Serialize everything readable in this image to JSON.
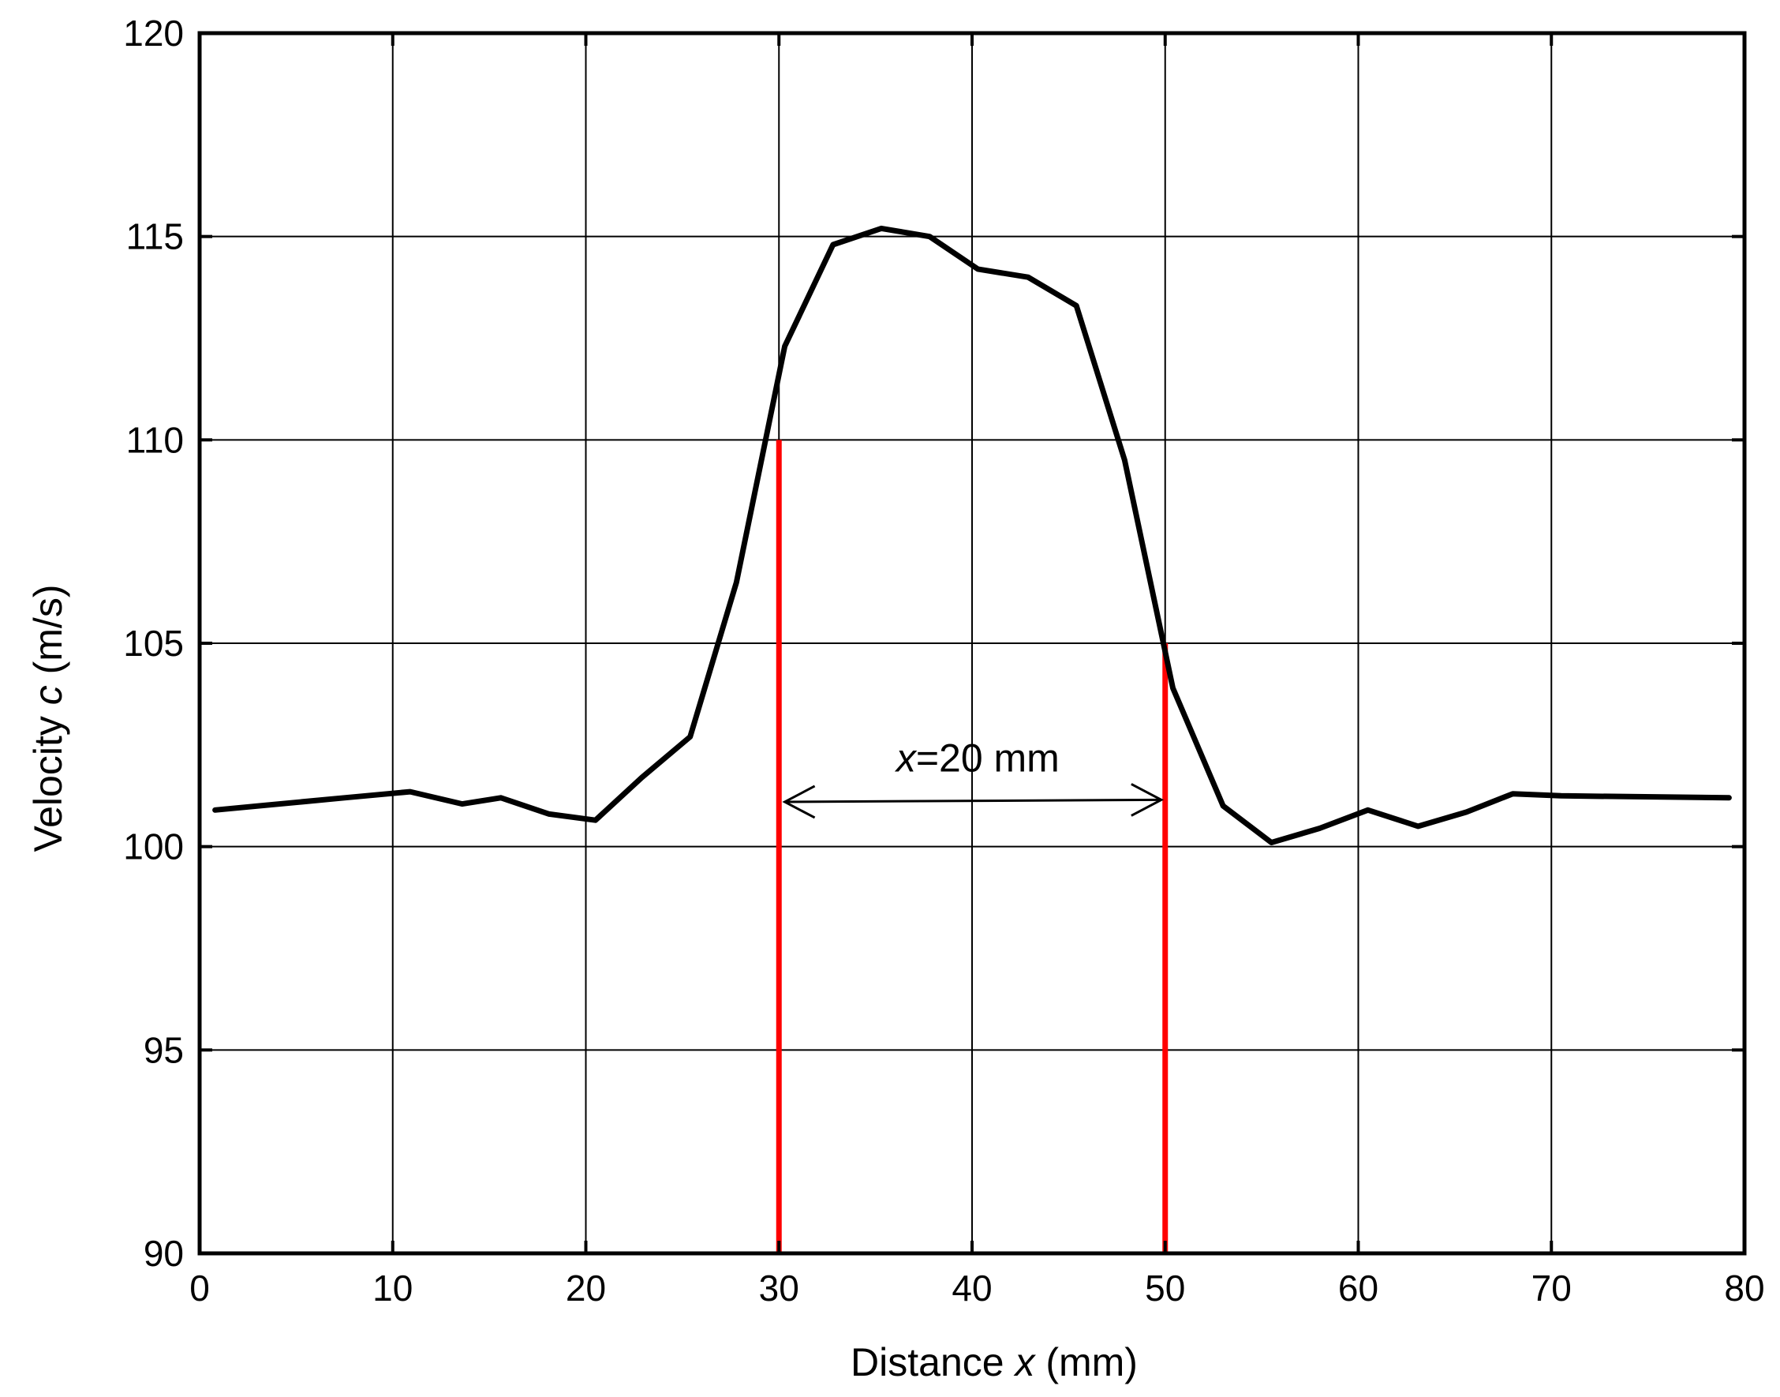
{
  "chart_data": {
    "type": "line",
    "title": "",
    "xlabel_parts": [
      {
        "text": "Distance ",
        "italic": false
      },
      {
        "text": "x",
        "italic": true
      },
      {
        "text": " (mm)",
        "italic": false
      }
    ],
    "ylabel_parts": [
      {
        "text": "Velocity ",
        "italic": false
      },
      {
        "text": "c",
        "italic": true
      },
      {
        "text": " (m/s)",
        "italic": false
      }
    ],
    "xlim": [
      0,
      80
    ],
    "ylim": [
      90,
      120
    ],
    "xticks": [
      0,
      10,
      20,
      30,
      40,
      50,
      60,
      70,
      80
    ],
    "yticks": [
      90,
      95,
      100,
      105,
      110,
      115,
      120
    ],
    "grid": true,
    "series": [
      {
        "color": "#000000",
        "x": [
          0.8,
          7.5,
          10.9,
          13.6,
          15.6,
          18.1,
          20.5,
          22.9,
          25.4,
          27.8,
          30.3,
          32.8,
          35.3,
          37.8,
          40.3,
          42.9,
          45.4,
          47.9,
          50.4,
          53.0,
          55.5,
          58.0,
          60.5,
          63.1,
          65.6,
          68.0,
          70.5,
          79.2
        ],
        "y": [
          100.9,
          101.2,
          101.35,
          101.05,
          101.2,
          100.8,
          100.65,
          101.7,
          102.7,
          106.5,
          112.3,
          114.8,
          115.2,
          115.0,
          114.2,
          114.0,
          113.3,
          109.5,
          103.9,
          101.0,
          100.1,
          100.45,
          100.9,
          100.5,
          100.85,
          101.3,
          101.25,
          101.2
        ]
      }
    ],
    "markers": [
      {
        "x": 30,
        "y_top": 110,
        "color": "#ff0000"
      },
      {
        "x": 50,
        "y_top": 105,
        "color": "#ff0000"
      }
    ],
    "annotation": {
      "text_italic": "x",
      "text_rest": "=20 mm",
      "arrow_from_x": 30.3,
      "arrow_to_x": 49.8,
      "arrow_y_start": 101.1,
      "arrow_y_end": 101.15,
      "label_x": 40.3,
      "label_y": 101.85
    }
  }
}
